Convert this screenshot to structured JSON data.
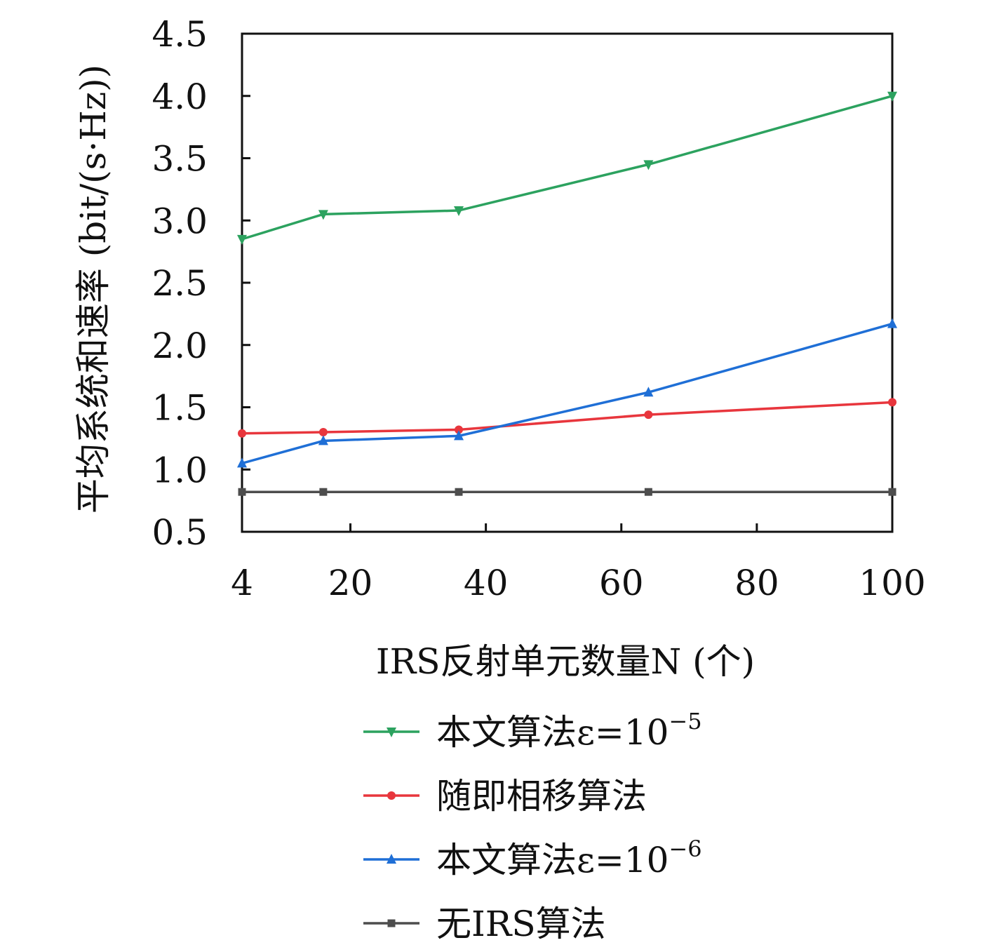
{
  "chart_data": {
    "type": "line",
    "xlabel": "IRS反射单元数量N (个)",
    "ylabel": "平均系统和速率 (bit/(s·Hz))",
    "xlim": [
      4,
      100
    ],
    "ylim": [
      0.5,
      4.5
    ],
    "xticks": [
      4,
      20,
      40,
      60,
      80,
      100
    ],
    "xtick_labels": [
      "4",
      "20",
      "40",
      "60",
      "80",
      "100"
    ],
    "yticks": [
      0.5,
      1.0,
      1.5,
      2.0,
      2.5,
      3.0,
      3.5,
      4.0,
      4.5
    ],
    "ytick_labels": [
      "0.5",
      "1.0",
      "1.5",
      "2.0",
      "2.5",
      "3.0",
      "3.5",
      "4.0",
      "4.5"
    ],
    "x": [
      4,
      16,
      36,
      64,
      100
    ],
    "grid": false,
    "legend_position": "bottom",
    "series": [
      {
        "name": "本文算法ε=10⁻⁵",
        "legend_main": "本文算法ε=10",
        "legend_sup": "−5",
        "color": "#2ca25f",
        "marker": "triangle-down",
        "values": [
          2.85,
          3.05,
          3.08,
          3.45,
          4.0
        ]
      },
      {
        "name": "随即相移算法",
        "legend_main": "随即相移算法",
        "legend_sup": "",
        "color": "#e8363d",
        "marker": "circle",
        "values": [
          1.29,
          1.3,
          1.32,
          1.44,
          1.54
        ]
      },
      {
        "name": "本文算法ε=10⁻⁶",
        "legend_main": "本文算法ε=10",
        "legend_sup": "−6",
        "color": "#1f6fd6",
        "marker": "triangle-up",
        "values": [
          1.05,
          1.23,
          1.27,
          1.62,
          2.17
        ]
      },
      {
        "name": "无IRS算法",
        "legend_main": "无IRS算法",
        "legend_sup": "",
        "color": "#4d4d4d",
        "marker": "square",
        "values": [
          0.82,
          0.82,
          0.82,
          0.82,
          0.82
        ]
      }
    ]
  }
}
